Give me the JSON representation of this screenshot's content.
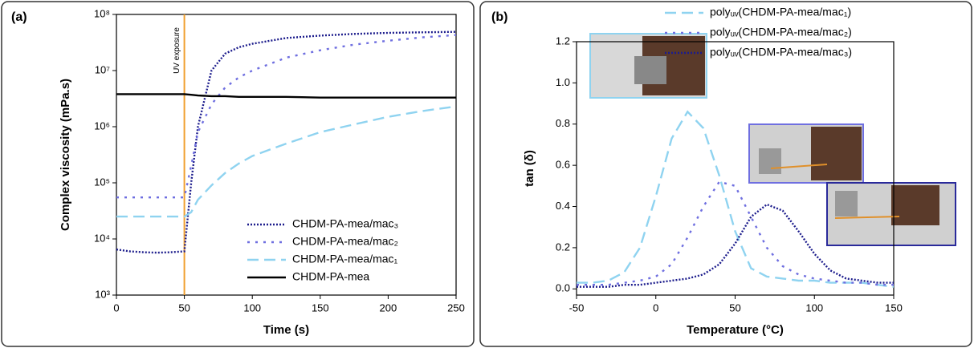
{
  "chart_data": [
    {
      "type": "line",
      "label": "(a)",
      "x_label": "Time (s)",
      "y_label": "Complex viscosity (mPa.s)",
      "x": [
        0,
        10,
        20,
        30,
        40,
        50,
        55,
        60,
        70,
        80,
        90,
        100,
        125,
        150,
        175,
        200,
        225,
        250
      ],
      "xlim": [
        0,
        250
      ],
      "xticks": [
        0,
        50,
        100,
        150,
        200,
        250
      ],
      "ylim": [
        1000,
        100000000
      ],
      "log_y": true,
      "yticks": [
        {
          "value": 1000,
          "label": "10³"
        },
        {
          "value": 10000,
          "label": "10⁴"
        },
        {
          "value": 100000,
          "label": "10⁵"
        },
        {
          "value": 1000000,
          "label": "10⁶"
        },
        {
          "value": 10000000,
          "label": "10⁷"
        },
        {
          "value": 100000000,
          "label": "10⁸"
        }
      ],
      "annotation": {
        "text": "UV exposure",
        "x": 50,
        "color": "#f0a030"
      },
      "legend": "lower right",
      "series": [
        {
          "name": "CHDM-PA-mea/mac₃",
          "color": "#1c1c8c",
          "style": "dotted",
          "values": [
            6500,
            6000,
            5800,
            5700,
            5800,
            6000,
            100000,
            1000000,
            10000000,
            20000000,
            26000000,
            30000000,
            38000000,
            42000000,
            45000000,
            47000000,
            48000000,
            49000000
          ]
        },
        {
          "name": "CHDM-PA-mea/mac₂",
          "color": "#6f6fe0",
          "style": "dotted-wide",
          "values": [
            55000,
            55000,
            55000,
            55000,
            55000,
            55000,
            200000,
            800000,
            2500000,
            5000000,
            7500000,
            10000000,
            17000000,
            23000000,
            29000000,
            34000000,
            39000000,
            43000000
          ]
        },
        {
          "name": "CHDM-PA-mea/mac₁",
          "color": "#8fd3f0",
          "style": "dashed",
          "values": [
            25000,
            25000,
            25000,
            25000,
            25000,
            25000,
            30000,
            50000,
            90000,
            150000,
            220000,
            300000,
            500000,
            800000,
            1100000,
            1500000,
            1900000,
            2300000
          ]
        },
        {
          "name": "CHDM-PA-mea",
          "color": "#000000",
          "style": "solid",
          "values": [
            3800000,
            3800000,
            3800000,
            3800000,
            3800000,
            3800000,
            3700000,
            3600000,
            3500000,
            3500000,
            3400000,
            3400000,
            3400000,
            3300000,
            3300000,
            3300000,
            3300000,
            3300000
          ]
        }
      ]
    },
    {
      "type": "line",
      "label": "(b)",
      "x_label": "Temperature (°C)",
      "y_label": "tan (δ)",
      "x": [
        -50,
        -40,
        -30,
        -20,
        -10,
        0,
        10,
        20,
        30,
        40,
        50,
        60,
        70,
        80,
        90,
        100,
        110,
        120,
        130,
        140,
        150
      ],
      "xlim": [
        -50,
        150
      ],
      "xticks": [
        -50,
        0,
        50,
        100,
        150
      ],
      "ylim": [
        -0.03,
        1.2
      ],
      "yticks": [
        {
          "value": 0,
          "label": "0.0"
        },
        0.2,
        0.4,
        0.6,
        0.8,
        {
          "value": 1,
          "label": "1.0"
        },
        1.2
      ],
      "legend": "upper right",
      "series": [
        {
          "name": "polyᵤᵥ(CHDM-PA-mea/mac₁)",
          "color": "#8fd3f0",
          "style": "dashed",
          "values": [
            0.03,
            0.03,
            0.04,
            0.08,
            0.2,
            0.45,
            0.73,
            0.86,
            0.78,
            0.55,
            0.28,
            0.1,
            0.06,
            0.05,
            0.04,
            0.04,
            0.03,
            0.03,
            0.03,
            0.02,
            0.01
          ]
        },
        {
          "name": "polyᵤᵥ(CHDM-PA-mea/mac₂)",
          "color": "#6f6fe0",
          "style": "dotted-wide",
          "values": [
            0.02,
            0.02,
            0.02,
            0.03,
            0.04,
            0.06,
            0.12,
            0.25,
            0.4,
            0.52,
            0.5,
            0.35,
            0.2,
            0.11,
            0.07,
            0.05,
            0.04,
            0.03,
            0.03,
            0.02,
            0.02
          ]
        },
        {
          "name": "polyᵤᵥ(CHDM-PA-mea/mac₃)",
          "color": "#1c1c8c",
          "style": "dotted",
          "values": [
            0.01,
            0.01,
            0.01,
            0.02,
            0.02,
            0.03,
            0.04,
            0.05,
            0.07,
            0.12,
            0.22,
            0.35,
            0.41,
            0.38,
            0.28,
            0.17,
            0.09,
            0.05,
            0.04,
            0.03,
            0.03
          ]
        }
      ]
    }
  ]
}
